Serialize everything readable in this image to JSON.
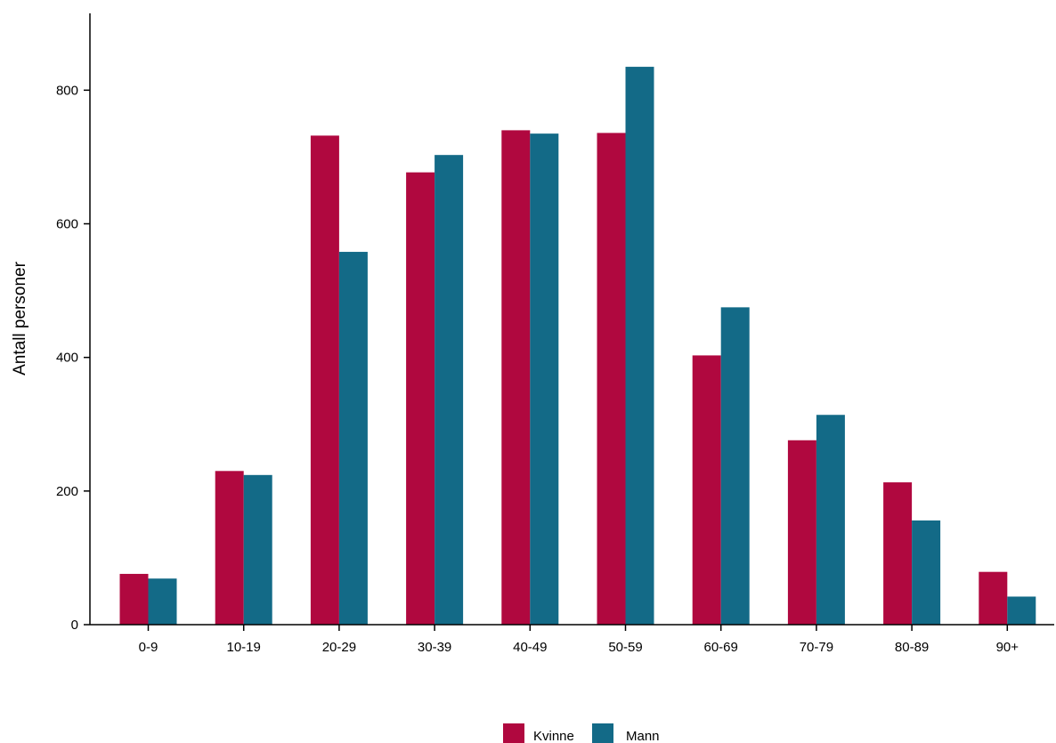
{
  "chart_data": {
    "type": "bar",
    "title": "",
    "xlabel": "",
    "ylabel": "Antall personer",
    "categories": [
      "0-9",
      "10-19",
      "20-29",
      "30-39",
      "40-49",
      "50-59",
      "60-69",
      "70-79",
      "80-89",
      "90+"
    ],
    "series": [
      {
        "name": "Kvinne",
        "color": "#B0083F",
        "values": [
          76,
          230,
          732,
          677,
          740,
          736,
          403,
          276,
          213,
          79
        ]
      },
      {
        "name": "Mann",
        "color": "#136A87",
        "values": [
          69,
          224,
          558,
          703,
          735,
          835,
          475,
          314,
          156,
          42
        ]
      }
    ],
    "ylim": [
      0,
      915
    ],
    "yticks": [
      0,
      200,
      400,
      600,
      800
    ],
    "grid": false,
    "legend_position": "bottom-center"
  }
}
